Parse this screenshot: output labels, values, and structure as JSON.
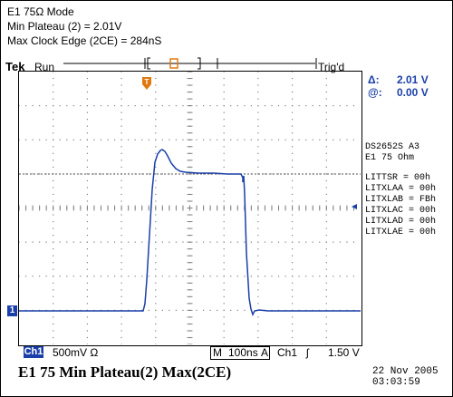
{
  "header": {
    "line1": "E1 75Ω Mode",
    "line2": "Min Plateau (2) = 2.01V",
    "line3": "Max Clock Edge (2CE) = 284nS"
  },
  "scope": {
    "brand": "Tek",
    "run_state": "Run",
    "trigger_state": "Trig'd",
    "trigger_marker": "T",
    "ground_marker": "1"
  },
  "cursor": {
    "delta_label": "Δ:",
    "delta_value": "2.01 V",
    "at_label": "@:",
    "at_value": "0.00 V"
  },
  "device_info": {
    "line1": "DS2652S A3",
    "line2": "E1 75 Ohm",
    "registers": [
      "LITTSR = 00h",
      "LITXLAA = 00h",
      "LITXLAB = FBh",
      "LITXLAC = 00h",
      "LITXLAD = 00h",
      "LITXLAE = 00h"
    ]
  },
  "status_bar": {
    "channel": "Ch1",
    "volts_div": "500mV Ω",
    "mode": "M",
    "time_div": "100ns",
    "acq": "A",
    "trig_channel": "Ch1",
    "trig_slope": "ʃ",
    "trig_level": "1.50 V"
  },
  "footer": {
    "caption": "E1 75 Min Plateau(2)  Max(2CE)",
    "date": "22 Nov 2005",
    "time": "03:03:59"
  },
  "colors": {
    "trace": "#1a3fa8",
    "trigger": "#e07a10",
    "grid": "#808080"
  }
}
